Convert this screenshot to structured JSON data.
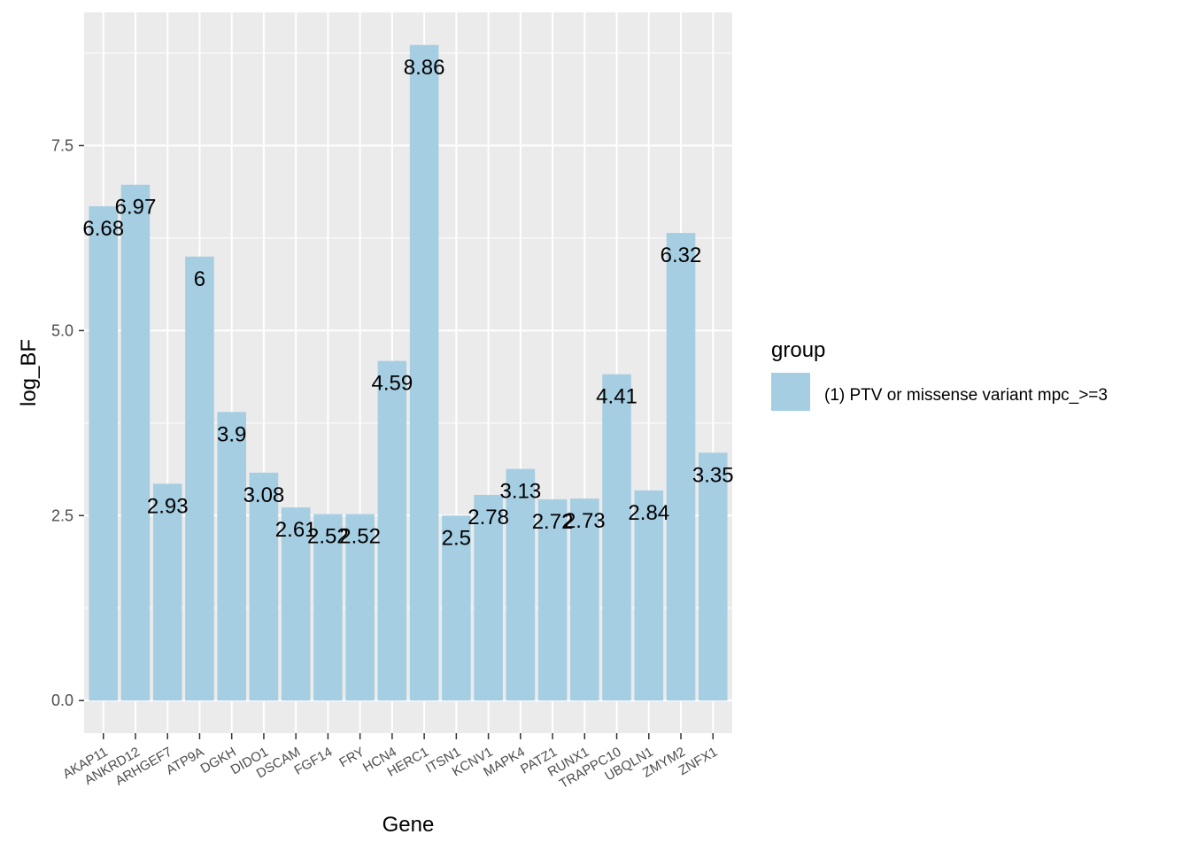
{
  "chart_data": {
    "type": "bar",
    "xlabel": "Gene",
    "ylabel": "log_BF",
    "categories": [
      "AKAP11",
      "ANKRD12",
      "ARHGEF7",
      "ATP9A",
      "DGKH",
      "DIDO1",
      "DSCAM",
      "FGF14",
      "FRY",
      "HCN4",
      "HERC1",
      "ITSN1",
      "KCNV1",
      "MAPK4",
      "PATZ1",
      "RUNX1",
      "TRAPPC10",
      "UBQLN1",
      "ZMYM2",
      "ZNFX1"
    ],
    "series": [
      {
        "name": "(1) PTV or missense variant mpc_>=3",
        "values": [
          6.68,
          6.97,
          2.93,
          6,
          3.9,
          3.08,
          2.61,
          2.52,
          2.52,
          4.59,
          8.86,
          2.5,
          2.78,
          3.13,
          2.72,
          2.73,
          4.41,
          2.84,
          6.32,
          3.35
        ]
      }
    ],
    "data_labels": [
      "6.68",
      "6.97",
      "2.93",
      "6",
      "3.9",
      "3.08",
      "2.61",
      "2.52",
      "2.52",
      "4.59",
      "8.86",
      "2.5",
      "2.78",
      "3.13",
      "2.72",
      "2.73",
      "4.41",
      "2.84",
      "6.32",
      "3.35"
    ],
    "y_ticks": [
      0,
      2.5,
      5,
      7.5
    ],
    "y_tick_labels": [
      "0.0",
      "2.5",
      "5.0",
      "7.5"
    ],
    "ylim": [
      -0.44,
      9.3
    ],
    "legend": {
      "title": "group",
      "position": "right"
    },
    "grid": true,
    "colors": {
      "bar": "#a6cee3",
      "panel": "#ebebeb",
      "grid": "#ffffff"
    }
  }
}
